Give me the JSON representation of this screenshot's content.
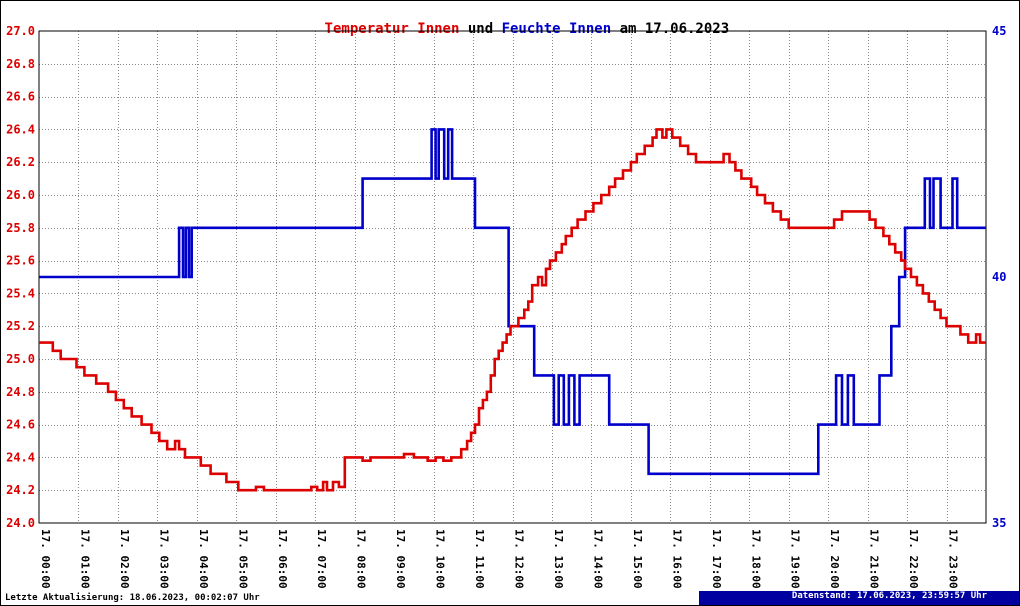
{
  "title": {
    "temperature_part": "Temperatur Innen",
    "connector": " und ",
    "humidity_part": "Feuchte Innen",
    "date_part": " am 17.06.2023"
  },
  "footer": {
    "last_update": "Letzte Aktualisierung: 18.06.2023, 00:02:07 Uhr",
    "data_state": "Datenstand: 17.06.2023, 23:59:57 Uhr"
  },
  "colors": {
    "temperature": "#dd0000",
    "humidity": "#0000cc",
    "grid": "#888888",
    "frame": "#000000",
    "badge_bg": "#0000a0",
    "badge_text": "#ffffff"
  },
  "chart_data": {
    "type": "line",
    "step": true,
    "title": "Temperatur Innen und Feuchte Innen am 17.06.2023",
    "x_range": [
      0,
      24
    ],
    "x_tick_labels": [
      "17. 00:00",
      "17. 01:00",
      "17. 02:00",
      "17. 03:00",
      "17. 04:00",
      "17. 05:00",
      "17. 06:00",
      "17. 07:00",
      "17. 08:00",
      "17. 09:00",
      "17. 10:00",
      "17. 11:00",
      "17. 12:00",
      "17. 13:00",
      "17. 14:00",
      "17. 15:00",
      "17. 16:00",
      "17. 17:00",
      "17. 18:00",
      "17. 19:00",
      "17. 20:00",
      "17. 21:00",
      "17. 22:00",
      "17. 23:00"
    ],
    "left_axis": {
      "min": 24.0,
      "max": 27.0,
      "tick_step": 0.2,
      "tick_labels": [
        "27.0",
        "26.8",
        "26.6",
        "26.4",
        "26.2",
        "26.0",
        "25.8",
        "25.6",
        "25.4",
        "25.2",
        "25.0",
        "24.8",
        "24.6",
        "24.4",
        "24.2",
        "24.0"
      ]
    },
    "right_axis": {
      "min": 35,
      "max": 45,
      "tick_labels": [
        "45",
        "40",
        "35"
      ]
    },
    "series": [
      {
        "name": "temperatur-innen",
        "label": "Temperatur Innen",
        "axis": "left",
        "color": "#dd0000",
        "points": [
          [
            0,
            25.1
          ],
          [
            0.35,
            25.05
          ],
          [
            0.55,
            25.0
          ],
          [
            0.95,
            24.95
          ],
          [
            1.15,
            24.9
          ],
          [
            1.45,
            24.85
          ],
          [
            1.75,
            24.8
          ],
          [
            1.95,
            24.75
          ],
          [
            2.15,
            24.7
          ],
          [
            2.35,
            24.65
          ],
          [
            2.6,
            24.6
          ],
          [
            2.85,
            24.55
          ],
          [
            3.05,
            24.5
          ],
          [
            3.25,
            24.45
          ],
          [
            3.45,
            24.5
          ],
          [
            3.55,
            24.45
          ],
          [
            3.7,
            24.4
          ],
          [
            4.1,
            24.35
          ],
          [
            4.35,
            24.3
          ],
          [
            4.75,
            24.25
          ],
          [
            5.05,
            24.2
          ],
          [
            5.5,
            24.22
          ],
          [
            5.7,
            24.2
          ],
          [
            6.9,
            24.22
          ],
          [
            7.05,
            24.2
          ],
          [
            7.2,
            24.25
          ],
          [
            7.3,
            24.2
          ],
          [
            7.45,
            24.25
          ],
          [
            7.6,
            24.22
          ],
          [
            7.75,
            24.4
          ],
          [
            8.2,
            24.38
          ],
          [
            8.4,
            24.4
          ],
          [
            9.25,
            24.42
          ],
          [
            9.5,
            24.4
          ],
          [
            9.85,
            24.38
          ],
          [
            10.05,
            24.4
          ],
          [
            10.25,
            24.38
          ],
          [
            10.45,
            24.4
          ],
          [
            10.7,
            24.45
          ],
          [
            10.85,
            24.5
          ],
          [
            10.95,
            24.55
          ],
          [
            11.05,
            24.6
          ],
          [
            11.15,
            24.7
          ],
          [
            11.25,
            24.75
          ],
          [
            11.35,
            24.8
          ],
          [
            11.45,
            24.9
          ],
          [
            11.55,
            25.0
          ],
          [
            11.65,
            25.05
          ],
          [
            11.75,
            25.1
          ],
          [
            11.85,
            25.15
          ],
          [
            11.95,
            25.2
          ],
          [
            12.15,
            25.25
          ],
          [
            12.3,
            25.3
          ],
          [
            12.4,
            25.35
          ],
          [
            12.5,
            25.45
          ],
          [
            12.65,
            25.5
          ],
          [
            12.75,
            25.45
          ],
          [
            12.85,
            25.55
          ],
          [
            12.95,
            25.6
          ],
          [
            13.1,
            25.65
          ],
          [
            13.25,
            25.7
          ],
          [
            13.35,
            25.75
          ],
          [
            13.5,
            25.8
          ],
          [
            13.65,
            25.85
          ],
          [
            13.85,
            25.9
          ],
          [
            14.05,
            25.95
          ],
          [
            14.25,
            26.0
          ],
          [
            14.45,
            26.05
          ],
          [
            14.6,
            26.1
          ],
          [
            14.8,
            26.15
          ],
          [
            15.0,
            26.2
          ],
          [
            15.15,
            26.25
          ],
          [
            15.35,
            26.3
          ],
          [
            15.55,
            26.35
          ],
          [
            15.65,
            26.4
          ],
          [
            15.8,
            26.35
          ],
          [
            15.9,
            26.4
          ],
          [
            16.05,
            26.35
          ],
          [
            16.25,
            26.3
          ],
          [
            16.45,
            26.25
          ],
          [
            16.65,
            26.2
          ],
          [
            17.35,
            26.25
          ],
          [
            17.5,
            26.2
          ],
          [
            17.65,
            26.15
          ],
          [
            17.8,
            26.1
          ],
          [
            18.05,
            26.05
          ],
          [
            18.2,
            26.0
          ],
          [
            18.4,
            25.95
          ],
          [
            18.6,
            25.9
          ],
          [
            18.8,
            25.85
          ],
          [
            19.0,
            25.8
          ],
          [
            20.15,
            25.85
          ],
          [
            20.35,
            25.9
          ],
          [
            21.05,
            25.85
          ],
          [
            21.2,
            25.8
          ],
          [
            21.4,
            25.75
          ],
          [
            21.55,
            25.7
          ],
          [
            21.7,
            25.65
          ],
          [
            21.85,
            25.6
          ],
          [
            21.95,
            25.55
          ],
          [
            22.1,
            25.5
          ],
          [
            22.25,
            25.45
          ],
          [
            22.4,
            25.4
          ],
          [
            22.55,
            25.35
          ],
          [
            22.7,
            25.3
          ],
          [
            22.85,
            25.25
          ],
          [
            23.0,
            25.2
          ],
          [
            23.35,
            25.15
          ],
          [
            23.55,
            25.1
          ],
          [
            23.75,
            25.15
          ],
          [
            23.85,
            25.1
          ]
        ]
      },
      {
        "name": "feuchte-innen",
        "label": "Feuchte Innen",
        "axis": "right",
        "color": "#0000cc",
        "points": [
          [
            0,
            40
          ],
          [
            3.55,
            41
          ],
          [
            3.65,
            40
          ],
          [
            3.72,
            41
          ],
          [
            3.8,
            40
          ],
          [
            3.87,
            41
          ],
          [
            8.2,
            42
          ],
          [
            9.95,
            43
          ],
          [
            10.05,
            42
          ],
          [
            10.13,
            43
          ],
          [
            10.27,
            42
          ],
          [
            10.37,
            43
          ],
          [
            10.47,
            42
          ],
          [
            11.05,
            41
          ],
          [
            11.9,
            39
          ],
          [
            12.55,
            38
          ],
          [
            13.05,
            37
          ],
          [
            13.17,
            38
          ],
          [
            13.3,
            37
          ],
          [
            13.43,
            38
          ],
          [
            13.57,
            37
          ],
          [
            13.7,
            38
          ],
          [
            14.45,
            37
          ],
          [
            15.45,
            36
          ],
          [
            19.75,
            37
          ],
          [
            20.2,
            38
          ],
          [
            20.35,
            37
          ],
          [
            20.5,
            38
          ],
          [
            20.65,
            37
          ],
          [
            21.3,
            38
          ],
          [
            21.6,
            39
          ],
          [
            21.8,
            40
          ],
          [
            21.95,
            41
          ],
          [
            22.45,
            42
          ],
          [
            22.58,
            41
          ],
          [
            22.67,
            42
          ],
          [
            22.85,
            41
          ],
          [
            23.15,
            42
          ],
          [
            23.27,
            41
          ]
        ]
      }
    ]
  }
}
